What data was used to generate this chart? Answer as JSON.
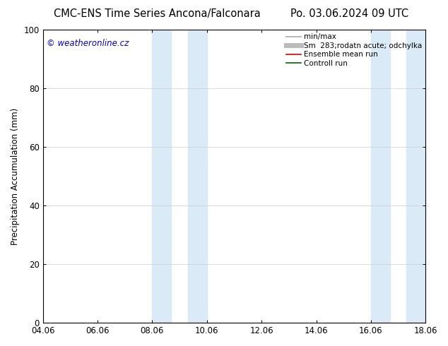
{
  "title_left": "CMC-ENS Time Series Ancona/Falconara",
  "title_right": "Po. 03.06.2024 09 UTC",
  "ylabel": "Precipitation Accumulation (mm)",
  "watermark": "© weatheronline.cz",
  "watermark_color": "#0000cc",
  "ylim": [
    0,
    100
  ],
  "yticks": [
    0,
    20,
    40,
    60,
    80,
    100
  ],
  "xtick_labels": [
    "04.06",
    "06.06",
    "08.06",
    "10.06",
    "12.06",
    "14.06",
    "16.06",
    "18.06"
  ],
  "xtick_positions": [
    0,
    2,
    4,
    6,
    8,
    10,
    12,
    14
  ],
  "shade_regions": [
    {
      "start": 4.0,
      "end": 4.7
    },
    {
      "start": 5.3,
      "end": 6.0
    },
    {
      "start": 12.0,
      "end": 12.7
    },
    {
      "start": 13.3,
      "end": 14.0
    }
  ],
  "shade_color": "#daeaf7",
  "legend_entries": [
    {
      "label": "min/max",
      "color": "#aaaaaa",
      "lw": 1.2
    },
    {
      "label": "Sm  283;rodatn acute; odchylka",
      "color": "#bbbbbb",
      "lw": 5
    },
    {
      "label": "Ensemble mean run",
      "color": "#dd0000",
      "lw": 1.2
    },
    {
      "label": "Controll run",
      "color": "#006600",
      "lw": 1.2
    }
  ],
  "background_color": "#ffffff",
  "grid_color": "#cccccc",
  "title_fontsize": 10.5,
  "ylabel_fontsize": 8.5,
  "tick_fontsize": 8.5,
  "legend_fontsize": 7.5,
  "watermark_fontsize": 8.5
}
